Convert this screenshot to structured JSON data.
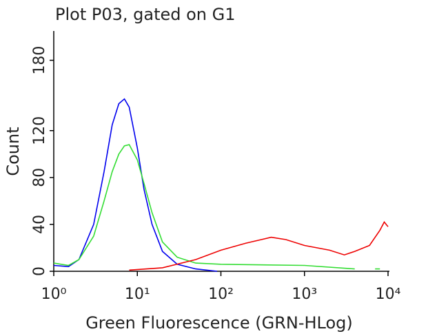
{
  "chart_data": {
    "type": "line",
    "title": "Plot P03, gated on G1",
    "x_label": "Green Fluorescence (GRN-HLog)",
    "y_label": "Count",
    "x_scale": "log",
    "xlim": [
      1,
      10000
    ],
    "xticks": [
      {
        "value": 1,
        "label": "10⁰"
      },
      {
        "value": 10,
        "label": "10¹"
      },
      {
        "value": 100,
        "label": "10²"
      },
      {
        "value": 1000,
        "label": "10³"
      },
      {
        "value": 10000,
        "label": "10⁴"
      }
    ],
    "ylim": [
      0,
      205
    ],
    "yticks": [
      0,
      40,
      80,
      120,
      180
    ],
    "series": [
      {
        "color": "#0000ee",
        "x": [
          1,
          1.5,
          2,
          3,
          4,
          5,
          6,
          7,
          8,
          10,
          12,
          15,
          20,
          30,
          50,
          90
        ],
        "values": [
          5,
          4,
          10,
          40,
          85,
          125,
          143,
          147,
          140,
          105,
          70,
          40,
          17,
          6,
          2,
          0
        ]
      },
      {
        "color": "#33dd33",
        "x": [
          1,
          1.5,
          2,
          3,
          4,
          5,
          6,
          7,
          8,
          10,
          12,
          15,
          20,
          30,
          50,
          100,
          1000,
          4000,
          null,
          7000,
          8000
        ],
        "values": [
          7,
          5,
          10,
          30,
          60,
          85,
          100,
          107,
          108,
          95,
          75,
          50,
          25,
          12,
          7,
          6,
          5,
          2,
          null,
          2,
          2
        ]
      },
      {
        "color": "#ee0000",
        "x": [
          8,
          20,
          50,
          100,
          200,
          400,
          600,
          1000,
          2000,
          3000,
          4000,
          6000,
          8000,
          9000,
          10000
        ],
        "values": [
          1,
          3,
          10,
          18,
          24,
          29,
          27,
          22,
          18,
          14,
          17,
          22,
          35,
          42,
          38
        ]
      }
    ]
  }
}
